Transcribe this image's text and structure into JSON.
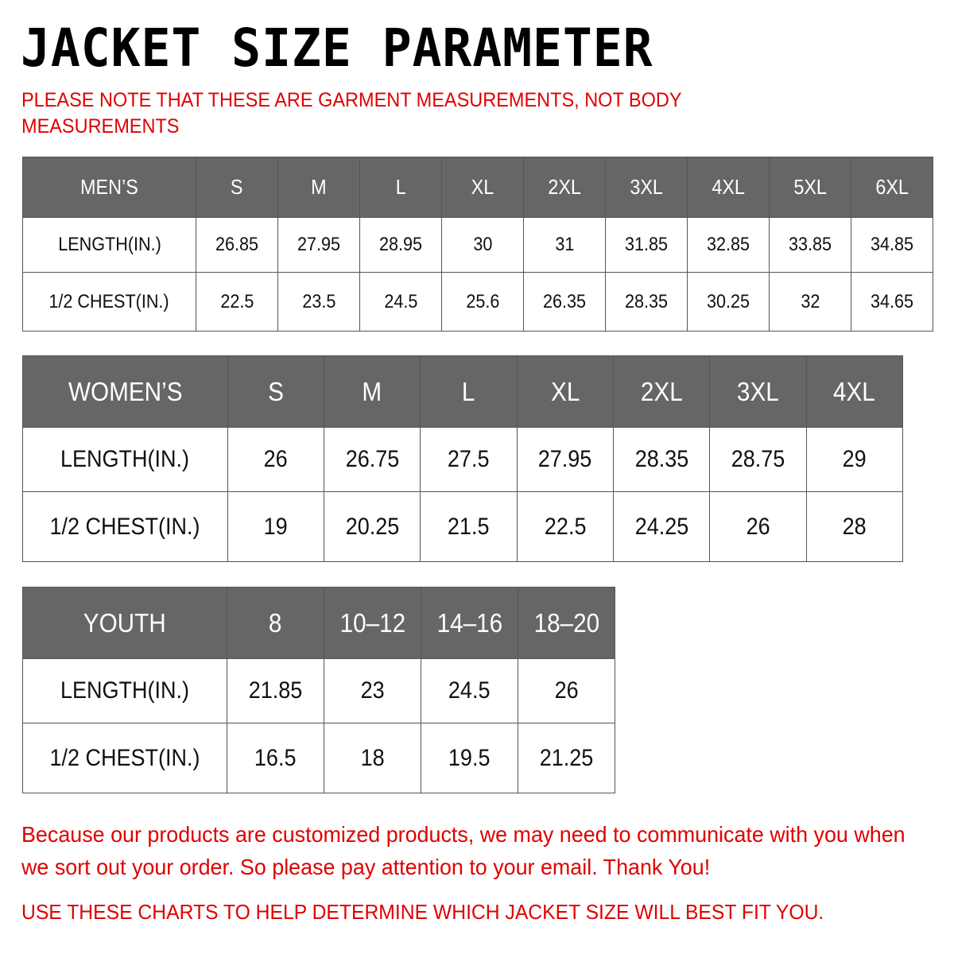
{
  "title": "JACKET SIZE PARAMETER",
  "notice_top": "PLEASE NOTE THAT THESE ARE GARMENT MEASUREMENTS, NOT BODY MEASUREMENTS",
  "tables": [
    {
      "name": "mens",
      "header": [
        "MEN’S",
        "S",
        "M",
        "L",
        "XL",
        "2XL",
        "3XL",
        "4XL",
        "5XL",
        "6XL"
      ],
      "rows": [
        [
          "LENGTH(IN.)",
          "26.85",
          "27.95",
          "28.95",
          "30",
          "31",
          "31.85",
          "32.85",
          "33.85",
          "34.85"
        ],
        [
          "1/2 CHEST(IN.)",
          "22.5",
          "23.5",
          "24.5",
          "25.6",
          "26.35",
          "28.35",
          "30.25",
          "32",
          "34.65"
        ]
      ]
    },
    {
      "name": "womens",
      "header": [
        "WOMEN’S",
        "S",
        "M",
        "L",
        "XL",
        "2XL",
        "3XL",
        "4XL"
      ],
      "rows": [
        [
          "LENGTH(IN.)",
          "26",
          "26.75",
          "27.5",
          "27.95",
          "28.35",
          "28.75",
          "29"
        ],
        [
          "1/2 CHEST(IN.)",
          "19",
          "20.25",
          "21.5",
          "22.5",
          "24.25",
          "26",
          "28"
        ]
      ]
    },
    {
      "name": "youth",
      "header": [
        "YOUTH",
        "8",
        "10–12",
        "14–16",
        "18–20"
      ],
      "rows": [
        [
          "LENGTH(IN.)",
          "21.85",
          "23",
          "24.5",
          "26"
        ],
        [
          "1/2 CHEST(IN.)",
          "16.5",
          "18",
          "19.5",
          "21.25"
        ]
      ]
    }
  ],
  "notice_bottom": "Because our products are customized products, we may need to communicate with you when we sort out your order. So please pay attention to your email. Thank You!",
  "notice_footer": "USE THESE CHARTS TO HELP DETERMINE WHICH JACKET SIZE WILL BEST FIT YOU.",
  "colors": {
    "header_bg": "#666666",
    "notice": "#e00000"
  }
}
